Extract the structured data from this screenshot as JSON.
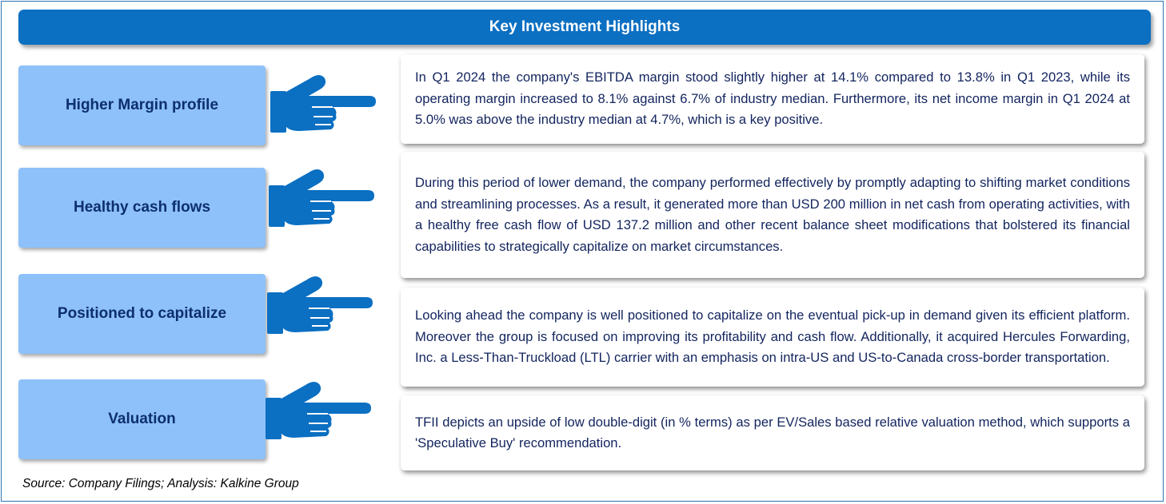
{
  "title": "Key Investment Highlights",
  "colors": {
    "banner": "#0b6fc2",
    "label_box": "#8ec1fa",
    "hand": "#0b6fc2",
    "text": "#12245e"
  },
  "highlights": [
    {
      "label": "Higher Margin profile",
      "text": "In Q1 2024 the company's EBITDA margin stood slightly higher at 14.1% compared to 13.8% in Q1 2023, while its operating margin increased to 8.1% against 6.7% of industry median. Furthermore, its net income margin in Q1 2024 at 5.0% was above the industry median at 4.7%, which is a key positive."
    },
    {
      "label": "Healthy cash flows",
      "text": "During this period of lower demand, the company performed effectively by promptly adapting to shifting market conditions and streamlining processes. As a result, it generated more than USD 200 million in net cash from operating activities, with a healthy free cash flow of USD 137.2 million and other recent balance sheet modifications that bolstered its financial capabilities to strategically capitalize on market circumstances."
    },
    {
      "label": "Positioned to capitalize",
      "text": "Looking ahead the company is well positioned to capitalize on the eventual pick-up in demand given its efficient platform. Moreover the group is focused on improving its profitability and cash flow. Additionally, it acquired Hercules Forwarding, Inc. a Less-Than-Truckload (LTL) carrier with an emphasis on intra-US and US-to-Canada cross-border transportation."
    },
    {
      "label": "Valuation",
      "text": "TFII depicts an upside of low double-digit (in % terms) as per EV/Sales based relative valuation method, which supports a 'Speculative Buy' recommendation."
    }
  ],
  "source": "Source: Company Filings; Analysis: Kalkine Group"
}
